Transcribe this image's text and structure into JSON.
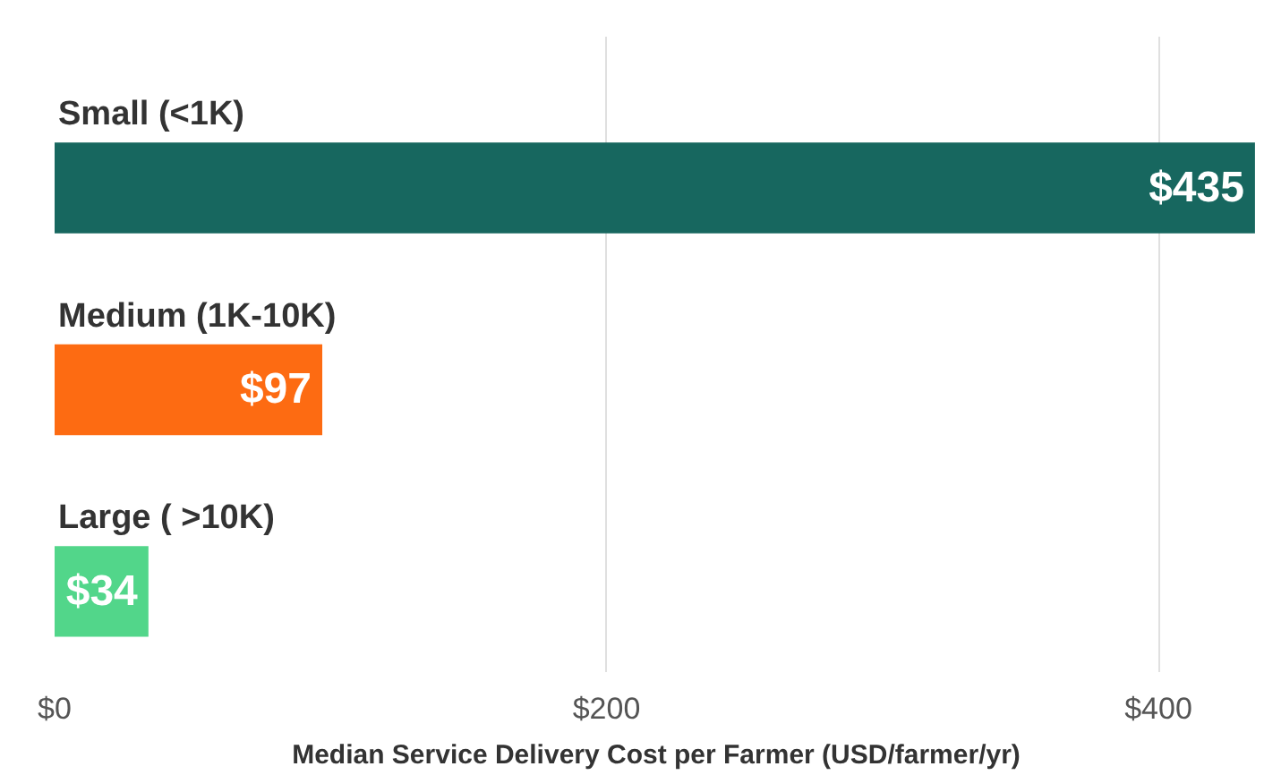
{
  "chart_data": {
    "type": "bar",
    "orientation": "horizontal",
    "xlabel": "Median Service Delivery Cost per Farmer (USD/farmer/yr)",
    "categories": [
      "Small (<1K)",
      "Medium (1K-10K)",
      "Large ( >10K)"
    ],
    "values": [
      435,
      97,
      34
    ],
    "colors": [
      "#17675f",
      "#fd6b12",
      "#52d68a"
    ],
    "value_labels": [
      "$435",
      "$97",
      "$34"
    ],
    "xlim": [
      0,
      436
    ],
    "xticks": [
      {
        "value": 0,
        "label": "$0"
      },
      {
        "value": 200,
        "label": "$200"
      },
      {
        "value": 400,
        "label": "$400"
      }
    ],
    "grid": "x"
  }
}
